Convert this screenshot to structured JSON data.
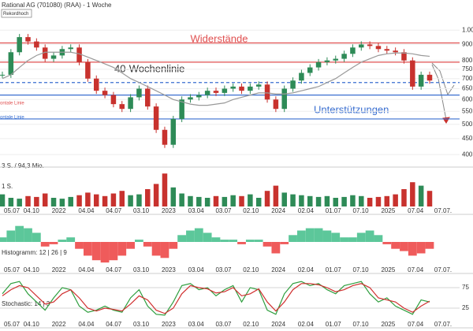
{
  "chart_data": {
    "type": "candlestick",
    "title": "Rational AG (701080) (RAA) - 1 Woche",
    "badge": "Rekordhoch",
    "log_scale": true,
    "ylim": [
      380,
      1080
    ],
    "yticks": [
      {
        "value": 1000,
        "label": "1.000"
      },
      900,
      800,
      750,
      700,
      650,
      600,
      550,
      500,
      450,
      400
    ],
    "date_labels": [
      "05.07",
      "04.10",
      "2022",
      "04.04",
      "04.07",
      "03.10",
      "2023",
      "03.04",
      "03.07",
      "02.10",
      "2024",
      "02.04",
      "01.07",
      "07.10",
      "2025",
      "07.04",
      "07.07."
    ],
    "close": [
      720,
      850,
      950,
      920,
      880,
      810,
      830,
      870,
      880,
      790,
      700,
      640,
      620,
      580,
      560,
      610,
      650,
      570,
      480,
      430,
      520,
      600,
      610,
      620,
      640,
      630,
      650,
      660,
      640,
      660,
      670,
      600,
      560,
      650,
      690,
      730,
      760,
      790,
      800,
      810,
      840,
      880,
      900,
      890,
      870,
      860,
      850,
      800,
      660,
      720,
      690
    ],
    "up_color": "#2e8b57",
    "down_color": "#c8322e",
    "ma": {
      "name": "40-Wochenlinie",
      "color": "#999999",
      "values": [
        700,
        720,
        760,
        800,
        830,
        850,
        850,
        850,
        850,
        840,
        820,
        800,
        780,
        760,
        730,
        700,
        680,
        660,
        640,
        620,
        600,
        590,
        580,
        575,
        575,
        580,
        585,
        600,
        610,
        620,
        630,
        630,
        625,
        625,
        630,
        640,
        650,
        660,
        680,
        700,
        730,
        760,
        790,
        810,
        830,
        840,
        845,
        845,
        840,
        830,
        825
      ]
    },
    "levels": [
      {
        "value": 910,
        "color": "#e05050",
        "dash": false
      },
      {
        "value": 790,
        "color": "#e05050",
        "dash": false
      },
      {
        "value": 680,
        "color": "#3a6fd0",
        "dash": true
      },
      {
        "value": 620,
        "color": "#3a6fd0",
        "dash": false
      },
      {
        "value": 520,
        "color": "#3a6fd0",
        "dash": false
      }
    ],
    "annotations": {
      "resistance": "Widerstände",
      "support": "Unterstützungen",
      "hline_red": "ontale Linie",
      "hline_blue": "ontale Linie"
    },
    "volume": {
      "label": "3 S. / 94,3 Mio.",
      "sublabel": "1 S.",
      "ylim": [
        0,
        40
      ],
      "values": [
        14,
        10,
        9,
        12,
        11,
        15,
        10,
        9,
        11,
        13,
        16,
        14,
        12,
        15,
        18,
        13,
        14,
        20,
        26,
        38,
        22,
        15,
        12,
        11,
        10,
        12,
        11,
        13,
        12,
        14,
        10,
        18,
        24,
        16,
        14,
        13,
        12,
        11,
        12,
        10,
        11,
        13,
        12,
        10,
        11,
        12,
        14,
        20,
        28,
        24,
        18
      ]
    },
    "macd": {
      "label": "Histogramm: 12 | 26 | 9",
      "ylim": [
        -10,
        10
      ],
      "values": [
        2,
        5,
        7,
        6,
        4,
        -2,
        -1,
        1,
        2,
        -3,
        -6,
        -8,
        -9,
        -8,
        -6,
        -3,
        1,
        -2,
        -6,
        -7,
        -3,
        3,
        5,
        6,
        4,
        2,
        1,
        1,
        -1,
        1,
        1,
        -2,
        -5,
        -1,
        3,
        5,
        6,
        6,
        5,
        4,
        2,
        2,
        4,
        5,
        3,
        -1,
        -3,
        -4,
        -6,
        -5,
        -3
      ]
    },
    "stochastic": {
      "label": "Stochastic: 14 | 3",
      "ylim": [
        0,
        100
      ],
      "yticks": [
        25,
        75
      ],
      "series": [
        {
          "color": "#2e9e3e",
          "values": [
            60,
            85,
            90,
            60,
            40,
            20,
            50,
            75,
            70,
            30,
            15,
            20,
            30,
            20,
            15,
            50,
            70,
            30,
            10,
            8,
            40,
            80,
            85,
            70,
            75,
            55,
            70,
            80,
            40,
            75,
            70,
            20,
            10,
            60,
            85,
            90,
            80,
            85,
            70,
            60,
            80,
            85,
            90,
            60,
            40,
            50,
            30,
            20,
            10,
            45,
            40
          ]
        },
        {
          "color": "#d03030",
          "values": [
            55,
            70,
            80,
            75,
            55,
            35,
            40,
            60,
            70,
            50,
            25,
            18,
            25,
            22,
            18,
            35,
            55,
            45,
            20,
            12,
            25,
            60,
            80,
            75,
            72,
            62,
            65,
            75,
            55,
            60,
            72,
            40,
            18,
            40,
            70,
            85,
            85,
            82,
            75,
            65,
            70,
            80,
            85,
            75,
            50,
            45,
            40,
            25,
            15,
            30,
            42
          ]
        }
      ]
    }
  }
}
